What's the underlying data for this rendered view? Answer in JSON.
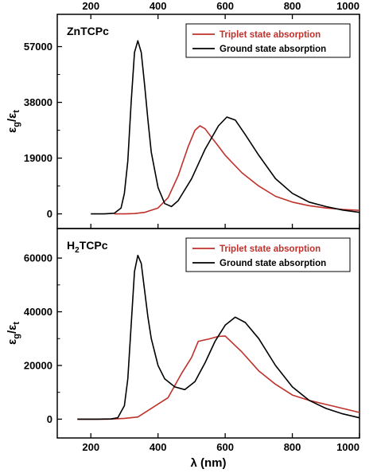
{
  "chart_data": {
    "type": "line",
    "shared_x_axis": {
      "label": "λ (nm)",
      "range": [
        100,
        1000
      ],
      "ticks": [
        200,
        400,
        600,
        800,
        1000
      ],
      "top_ticks": [
        200,
        400,
        600,
        800,
        1000
      ]
    },
    "panels": [
      {
        "label": {
          "main": "ZnTCPc",
          "sub": ""
        },
        "ylabel": {
          "base": "ε",
          "sub1": "g",
          "slash": "/",
          "base2": "ε",
          "sub2": "t"
        },
        "ylim": [
          -5000,
          68000
        ],
        "yticks": [
          "0",
          "19000",
          "38000",
          "57000"
        ],
        "ytick_values": [
          0,
          19000,
          38000,
          57000
        ],
        "legend_position": "top-right",
        "series": [
          {
            "name": "Triplet state absorption",
            "color": "#c0302a",
            "x": [
              270,
              300,
              330,
              360,
              400,
              430,
              460,
              490,
              510,
              525,
              540,
              560,
              580,
              600,
              650,
              700,
              750,
              800,
              850,
              900,
              950,
              1000
            ],
            "y": [
              0,
              0,
              100,
              500,
              2000,
              5500,
              13000,
              23000,
              28500,
              30000,
              29000,
              26000,
              23000,
              20000,
              14000,
              9500,
              6000,
              4000,
              2800,
              2000,
              1500,
              1200
            ]
          },
          {
            "name": "Ground state absorption",
            "color": "#000000",
            "x": [
              200,
              240,
              270,
              290,
              300,
              310,
              320,
              330,
              340,
              350,
              360,
              370,
              380,
              400,
              420,
              440,
              460,
              500,
              540,
              580,
              605,
              630,
              660,
              700,
              750,
              800,
              850,
              900,
              950,
              1000
            ],
            "y": [
              0,
              0,
              200,
              2000,
              7000,
              18000,
              38000,
              55000,
              59000,
              55000,
              44000,
              32000,
              21000,
              9000,
              3500,
              2500,
              4500,
              12000,
              22000,
              30000,
              33000,
              32000,
              27000,
              20000,
              12000,
              7000,
              4000,
              2500,
              1300,
              500
            ]
          }
        ]
      },
      {
        "label": {
          "main": "H",
          "sub": "2",
          "rest": "TCPc"
        },
        "ylabel": {
          "base": "ε",
          "sub1": "g",
          "slash": "/",
          "base2": "ε",
          "sub2": "t"
        },
        "ylim": [
          -7000,
          71000
        ],
        "yticks": [
          "0",
          "20000",
          "40000",
          "60000"
        ],
        "ytick_values": [
          0,
          20000,
          40000,
          60000
        ],
        "legend_position": "top-right",
        "series": [
          {
            "name": "Triplet state absorption",
            "color": "#c0302a",
            "x": [
              160,
              200,
              250,
              300,
              340,
              380,
              430,
              470,
              500,
              520,
              550,
              580,
              600,
              650,
              700,
              750,
              800,
              850,
              900,
              950,
              1000
            ],
            "y": [
              0,
              0,
              0,
              300,
              800,
              4000,
              8000,
              17000,
              23000,
              29000,
              29800,
              30800,
              31000,
              25000,
              18000,
              13000,
              9000,
              7000,
              5500,
              4000,
              2500
            ]
          },
          {
            "name": "Ground state absorption",
            "color": "#000000",
            "x": [
              160,
              220,
              260,
              280,
              300,
              310,
              320,
              330,
              340,
              350,
              360,
              370,
              380,
              400,
              420,
              450,
              480,
              510,
              540,
              570,
              600,
              630,
              660,
              700,
              750,
              800,
              850,
              900,
              950,
              1000
            ],
            "y": [
              0,
              0,
              100,
              500,
              5000,
              15000,
              35000,
              55000,
              61000,
              58000,
              48000,
              38000,
              30000,
              20000,
              15000,
              12000,
              11000,
              14000,
              21000,
              29000,
              35000,
              38000,
              36000,
              30000,
              20000,
              12000,
              7000,
              4000,
              2000,
              500
            ]
          }
        ]
      }
    ]
  }
}
